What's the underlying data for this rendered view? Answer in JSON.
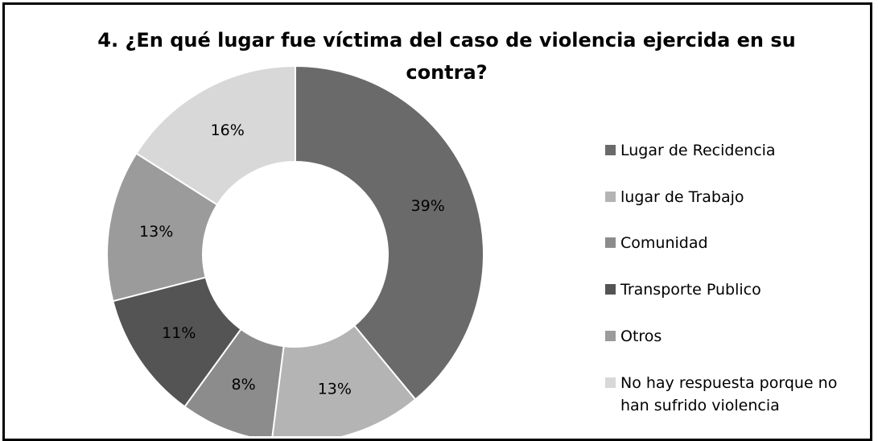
{
  "chart_data": {
    "type": "donut",
    "title": "4. ¿En qué lugar fue víctima del caso de violencia ejercida en su contra?",
    "categories": [
      "Lugar de Recidencia",
      "lugar de Trabajo",
      "Comunidad",
      "Transporte Publico",
      "Otros",
      "No hay respuesta porque no han sufrido violencia"
    ],
    "values": [
      39,
      13,
      8,
      11,
      13,
      16
    ],
    "value_labels": [
      "39%",
      "13%",
      "8%",
      "11%",
      "13%",
      "16%"
    ],
    "colors": [
      "#6a6a6a",
      "#b4b4b4",
      "#8c8c8c",
      "#545454",
      "#9b9b9b",
      "#d8d8d8"
    ],
    "legend": "right"
  }
}
